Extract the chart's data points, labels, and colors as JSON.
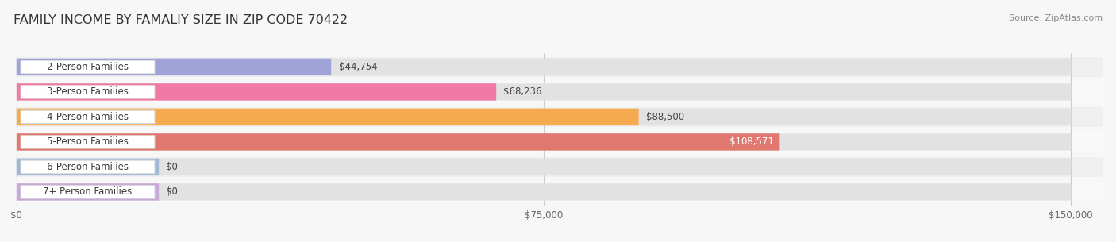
{
  "title": "FAMILY INCOME BY FAMALIY SIZE IN ZIP CODE 70422",
  "source": "Source: ZipAtlas.com",
  "categories": [
    "2-Person Families",
    "3-Person Families",
    "4-Person Families",
    "5-Person Families",
    "6-Person Families",
    "7+ Person Families"
  ],
  "values": [
    44754,
    68236,
    88500,
    108571,
    0,
    0
  ],
  "bar_colors": [
    "#a0a3d8",
    "#f07aa5",
    "#f5aa50",
    "#e07870",
    "#a0b8d8",
    "#c8aad8"
  ],
  "value_labels": [
    "$44,754",
    "$68,236",
    "$88,500",
    "$108,571",
    "$0",
    "$0"
  ],
  "value_label_inside": [
    false,
    false,
    false,
    true,
    false,
    false
  ],
  "x_max": 150000,
  "x_ticks": [
    0,
    75000,
    150000
  ],
  "x_tick_labels": [
    "$0",
    "$75,000",
    "$150,000"
  ],
  "bg_color": "#f7f7f7",
  "row_bg_even": "#efefef",
  "row_bg_odd": "#f9f9f9",
  "bar_bg_color": "#e2e2e2",
  "title_fontsize": 11.5,
  "label_fontsize": 8.5,
  "value_fontsize": 8.5,
  "source_fontsize": 8
}
